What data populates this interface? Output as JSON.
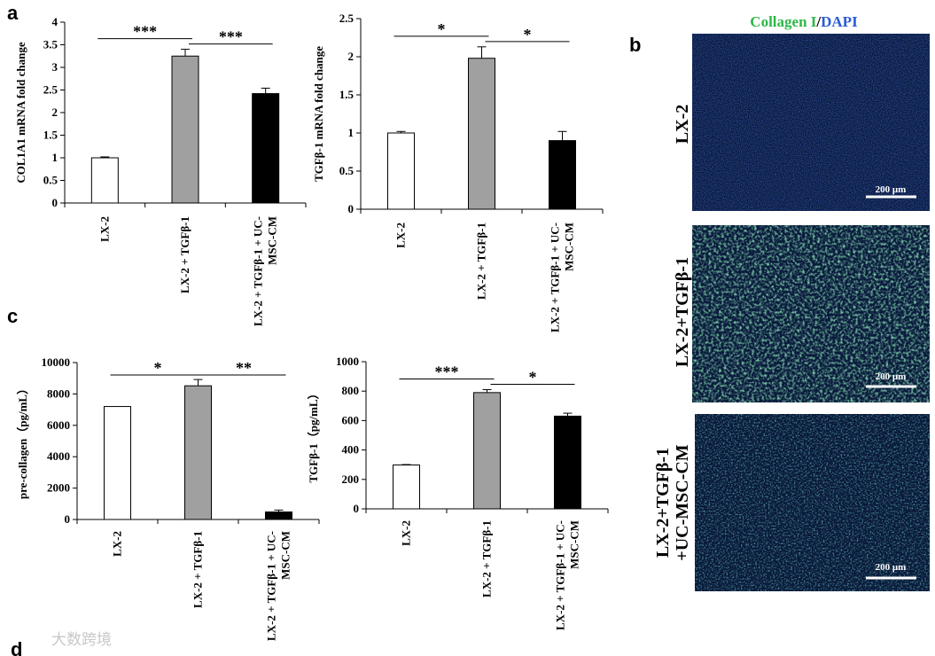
{
  "panel_labels": [
    "a",
    "b",
    "c",
    "d"
  ],
  "microscopy": {
    "title_green": "Collagen I",
    "title_sep": "/",
    "title_blue": "DAPI",
    "scale_bar": "200 μm",
    "rows": [
      "LX-2",
      "LX-2+TGFβ-1",
      "LX-2+TGFβ-1 +UC-MSC-CM"
    ],
    "rows_lines": [
      [
        "LX-2"
      ],
      [
        "LX-2+TGFβ-1"
      ],
      [
        "LX-2+TGFβ-1",
        "+UC-MSC-CM"
      ]
    ]
  },
  "watermark": "大数跨境",
  "chart_data": [
    {
      "type": "bar",
      "ylabel": "COL1A1 mRNA fold change",
      "ylim": [
        0,
        4
      ],
      "yticks": [
        0,
        0.5,
        1,
        1.5,
        2,
        2.5,
        3,
        3.5,
        4
      ],
      "ytick_labels": [
        "0",
        "0.5",
        "1",
        "1.5",
        "2",
        "2.5",
        "3",
        "3.5",
        "4"
      ],
      "categories": [
        "LX-2",
        "LX-2 + TGFβ-1",
        "LX-2 + TGFβ-1 + UC-MSC-CM"
      ],
      "category_lines": [
        [
          "LX-2"
        ],
        [
          "LX-2 + TGFβ-1"
        ],
        [
          "LX-2 + TGFβ-1 + UC-",
          "MSC-CM"
        ]
      ],
      "values": [
        1.0,
        3.25,
        2.42
      ],
      "errors": [
        0.02,
        0.15,
        0.12
      ],
      "bar_colors": [
        "#ffffff",
        "#a0a0a0",
        "#000000"
      ],
      "significance": [
        {
          "from": 0,
          "to": 1,
          "label": "***"
        },
        {
          "from": 1,
          "to": 2,
          "label": "***"
        }
      ]
    },
    {
      "type": "bar",
      "ylabel": "TGFβ-1 mRNA fold change",
      "ylim": [
        0,
        2.5
      ],
      "yticks": [
        0,
        0.5,
        1,
        1.5,
        2,
        2.5
      ],
      "ytick_labels": [
        "0",
        "0.5",
        "1",
        "1.5",
        "2",
        "2.5"
      ],
      "categories": [
        "LX-2",
        "LX-2 + TGFβ-1",
        "LX-2 + TGFβ-1 + UC-MSC-CM"
      ],
      "category_lines": [
        [
          "LX-2"
        ],
        [
          "LX-2 + TGFβ-1"
        ],
        [
          "LX-2 + TGFβ-1 + UC-",
          "MSC-CM"
        ]
      ],
      "values": [
        1.0,
        1.98,
        0.9
      ],
      "errors": [
        0.02,
        0.15,
        0.12
      ],
      "bar_colors": [
        "#ffffff",
        "#a0a0a0",
        "#000000"
      ],
      "significance": [
        {
          "from": 0,
          "to": 1,
          "label": "*"
        },
        {
          "from": 1,
          "to": 2,
          "label": "*"
        }
      ]
    },
    {
      "type": "bar",
      "ylabel": "pre-collagen（pg/mL）",
      "ylim": [
        0,
        10000
      ],
      "yticks": [
        0,
        2000,
        4000,
        6000,
        8000,
        10000
      ],
      "ytick_labels": [
        "0",
        "2000",
        "4000",
        "6000",
        "8000",
        "10000"
      ],
      "categories": [
        "LX-2",
        "LX-2 + TGFβ-1",
        "LX-2 + TGFβ-1 + UC-MSC-CM"
      ],
      "category_lines": [
        [
          "LX-2"
        ],
        [
          "LX-2 + TGFβ-1"
        ],
        [
          "LX-2 + TGFβ-1 + UC-",
          "MSC-CM"
        ]
      ],
      "values": [
        7200,
        8520,
        480
      ],
      "errors": [
        0,
        400,
        120
      ],
      "bar_colors": [
        "#ffffff",
        "#a0a0a0",
        "#000000"
      ],
      "significance": [
        {
          "from": 0,
          "to": 1,
          "label": "*"
        },
        {
          "from": 1,
          "to": 2,
          "label": "**"
        }
      ]
    },
    {
      "type": "bar",
      "ylabel": "TGFβ-1（pg/mL）",
      "ylim": [
        0,
        1000
      ],
      "yticks": [
        0,
        200,
        400,
        600,
        800,
        1000
      ],
      "ytick_labels": [
        "0",
        "200",
        "400",
        "600",
        "800",
        "1000"
      ],
      "categories": [
        "LX-2",
        "LX-2 + TGFβ-1",
        "LX-2 + TGFβ-1 + UC-MSC-CM"
      ],
      "category_lines": [
        [
          "LX-2"
        ],
        [
          "LX-2 + TGFβ-1"
        ],
        [
          "LX-2 + TGFβ-1 + UC-",
          "MSC-CM"
        ]
      ],
      "values": [
        298,
        790,
        630
      ],
      "errors": [
        3,
        20,
        20
      ],
      "bar_colors": [
        "#ffffff",
        "#a0a0a0",
        "#000000"
      ],
      "significance": [
        {
          "from": 0,
          "to": 1,
          "label": "***"
        },
        {
          "from": 1,
          "to": 2,
          "label": "*"
        }
      ]
    }
  ]
}
